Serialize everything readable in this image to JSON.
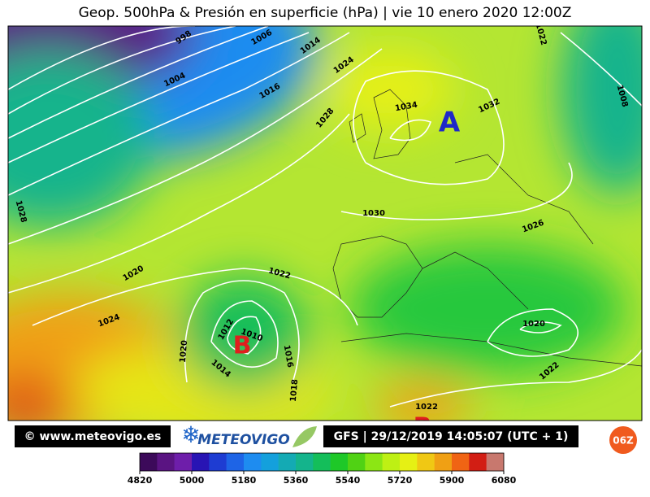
{
  "title": "Geop. 500hPa & Presión en superficie (hPa) | vie 10 enero 2020 12:00Z",
  "map": {
    "highs": [
      "A"
    ],
    "lows": [
      "B",
      "B"
    ],
    "isobar_labels": [
      998,
      1006,
      1014,
      1024,
      1022,
      1008,
      1004,
      1016,
      1034,
      1028,
      1032,
      1030,
      1026,
      1028,
      1020,
      1022,
      1024,
      1012,
      1010,
      1016,
      1014,
      1020,
      1018,
      1022,
      1020,
      1022
    ]
  },
  "footer": {
    "site": "© www.meteovigo.es",
    "brand": "METEOVIGO",
    "run": "GFS | 29/12/2019 14:05:07 (UTC + 1)",
    "badge": "06Z"
  },
  "colorbar": {
    "ticks": [
      4820,
      5000,
      5180,
      5360,
      5540,
      5720,
      5900,
      6080
    ],
    "colors": [
      "#3c0a5a",
      "#5a1482",
      "#6e1eaa",
      "#2814b4",
      "#1e3cd2",
      "#1e64e6",
      "#1e8cf0",
      "#14a0dc",
      "#14aab4",
      "#14b48c",
      "#14be5a",
      "#1ec828",
      "#50d214",
      "#8ce614",
      "#bef014",
      "#e6f014",
      "#f0c814",
      "#f0a014",
      "#f06414",
      "#d21e14",
      "#c8786e"
    ]
  }
}
